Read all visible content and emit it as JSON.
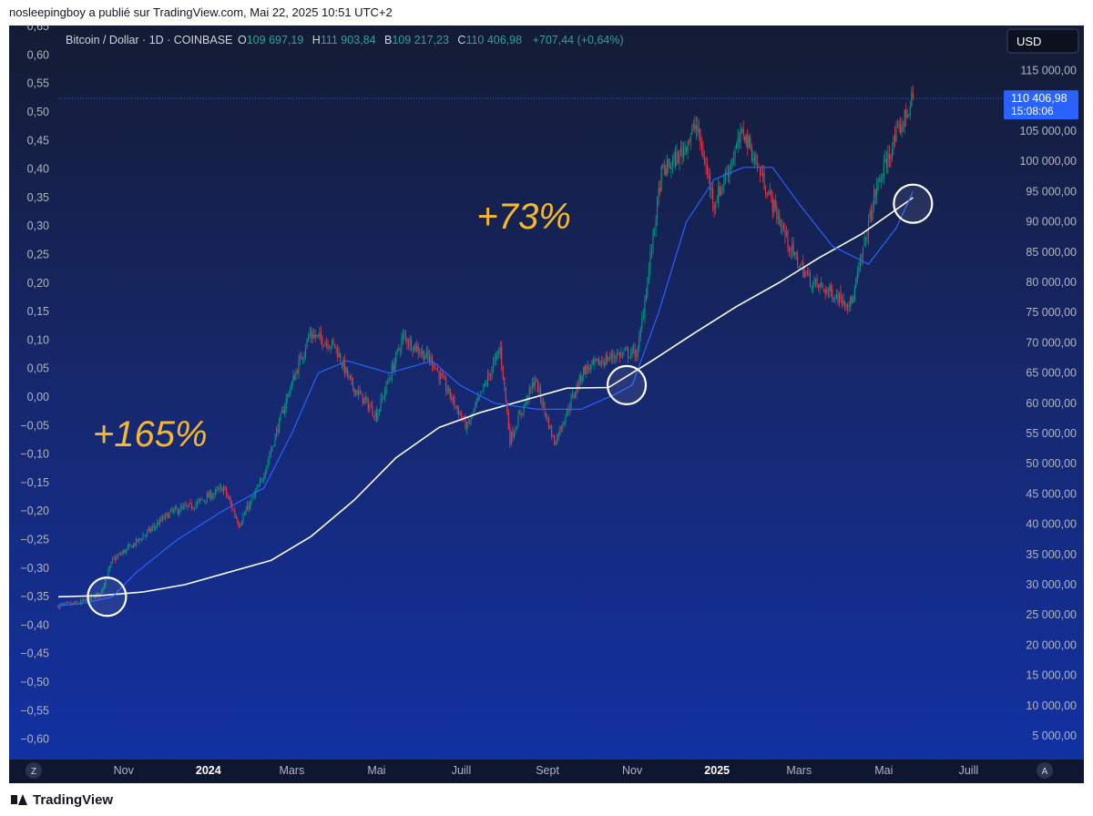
{
  "header": {
    "publisher_line": "nosleepingboy a publié sur TradingView.com, Mai 22, 2025 10:51 UTC+2"
  },
  "legend": {
    "symbol": "Bitcoin / Dollar · 1D · COINBASE",
    "o_label": "O",
    "o_value": "109 697,19",
    "h_label": "H",
    "h_value": "111 903,84",
    "b_label": "B",
    "b_value": "109 217,23",
    "c_label": "C",
    "c_value": "110 406,98",
    "change": "+707,44 (+0,64%)"
  },
  "currency_button": "USD",
  "price_tag": {
    "price": "110 406,98",
    "countdown": "15:08:06"
  },
  "annotations": [
    {
      "text": "+165%",
      "date": "2023-11-20",
      "price": 55000
    },
    {
      "text": "+73%",
      "date": "2024-08-15",
      "price": 91000
    }
  ],
  "axis_buttons": {
    "left": "Z",
    "right": "A"
  },
  "footer": {
    "brand": "TradingView"
  },
  "colors": {
    "background": "#131d3a",
    "up": "#089981",
    "down": "#f23645",
    "ma_short": "#2962ff",
    "ma_long": "#ffffff",
    "annotation": "#f5b82e",
    "price_tag": "#2962ff"
  },
  "chart_data": {
    "type": "line",
    "title": "Bitcoin / Dollar · 1D · COINBASE",
    "right_axis": {
      "ylim": [
        0,
        120000
      ],
      "ticks": [
        5000,
        10000,
        15000,
        20000,
        25000,
        30000,
        35000,
        40000,
        45000,
        50000,
        55000,
        60000,
        65000,
        70000,
        75000,
        80000,
        85000,
        90000,
        95000,
        100000,
        105000,
        110000,
        115000
      ],
      "tick_labels": [
        "5 000,00",
        "10 000,00",
        "15 000,00",
        "20 000,00",
        "25 000,00",
        "30 000,00",
        "35 000,00",
        "40 000,00",
        "45 000,00",
        "50 000,00",
        "55 000,00",
        "60 000,00",
        "65 000,00",
        "70 000,00",
        "75 000,00",
        "80 000,00",
        "85 000,00",
        "90 000,00",
        "95 000,00",
        "100 000,00",
        "105 000,00",
        "110 000,00",
        "115 000,00"
      ]
    },
    "left_axis": {
      "ticks": [
        0.65,
        0.6,
        0.55,
        0.5,
        0.45,
        0.4,
        0.35,
        0.3,
        0.25,
        0.2,
        0.15,
        0.1,
        0.05,
        0.0,
        -0.05,
        -0.1,
        -0.15,
        -0.2,
        -0.25,
        -0.3,
        -0.35,
        -0.4,
        -0.45,
        -0.5,
        -0.55,
        -0.6
      ],
      "tick_labels": [
        "0,65",
        "0,60",
        "0,55",
        "0,50",
        "0,45",
        "0,40",
        "0,35",
        "0,30",
        "0,25",
        "0,20",
        "0,15",
        "0,10",
        "0,05",
        "0,00",
        "−0,05",
        "−0,10",
        "−0,15",
        "−0,20",
        "−0,25",
        "−0,30",
        "−0,35",
        "−0,40",
        "−0,45",
        "−0,50",
        "−0,55",
        "−0,60"
      ]
    },
    "x_axis": {
      "xlim": [
        "2023-09-15",
        "2025-07-25"
      ],
      "tick_dates": [
        "2023-11-01",
        "2024-01-01",
        "2024-03-01",
        "2024-05-01",
        "2024-07-01",
        "2024-09-01",
        "2024-11-01",
        "2025-01-01",
        "2025-03-01",
        "2025-05-01",
        "2025-07-01"
      ],
      "tick_labels": [
        "Nov",
        "2024",
        "Mars",
        "Mai",
        "Juill",
        "Sept",
        "Nov",
        "2025",
        "Mars",
        "Mai",
        "Juill"
      ],
      "bold_labels": [
        "2024",
        "2025"
      ]
    },
    "series": [
      {
        "type": "candlestick",
        "x": [
          "2023-09-15",
          "2023-10-01",
          "2023-10-15",
          "2023-10-24",
          "2023-11-10",
          "2023-12-05",
          "2023-12-20",
          "2024-01-12",
          "2024-01-23",
          "2024-02-08",
          "2024-02-28",
          "2024-03-14",
          "2024-04-01",
          "2024-04-13",
          "2024-05-01",
          "2024-05-20",
          "2024-06-10",
          "2024-07-05",
          "2024-07-29",
          "2024-08-05",
          "2024-08-23",
          "2024-09-06",
          "2024-09-27",
          "2024-10-20",
          "2024-11-05",
          "2024-11-22",
          "2024-12-05",
          "2024-12-17",
          "2024-12-30",
          "2025-01-20",
          "2025-02-03",
          "2025-02-25",
          "2025-03-10",
          "2025-04-08",
          "2025-04-25",
          "2025-05-08",
          "2025-05-22"
        ],
        "values": [
          26500,
          27000,
          28500,
          34000,
          37000,
          42000,
          43000,
          46000,
          40000,
          47000,
          62000,
          71500,
          69500,
          63000,
          58000,
          71000,
          67000,
          56000,
          69000,
          54000,
          64000,
          53500,
          65500,
          68000,
          68500,
          98000,
          101000,
          106000,
          93000,
          105000,
          97000,
          84500,
          80000,
          76500,
          95000,
          103000,
          110400
        ]
      },
      {
        "name": "",
        "type": "moving-average-short",
        "x": [
          "2023-09-15",
          "2023-10-01",
          "2023-10-24",
          "2023-11-10",
          "2023-12-10",
          "2024-01-10",
          "2024-02-10",
          "2024-03-01",
          "2024-03-20",
          "2024-04-10",
          "2024-05-10",
          "2024-06-10",
          "2024-06-30",
          "2024-07-25",
          "2024-08-25",
          "2024-09-25",
          "2024-10-20",
          "2024-11-01",
          "2024-11-20",
          "2024-12-10",
          "2024-12-30",
          "2025-01-20",
          "2025-02-10",
          "2025-03-01",
          "2025-03-25",
          "2025-04-20",
          "2025-05-10",
          "2025-05-22"
        ],
        "values": [
          26500,
          26800,
          28000,
          32000,
          37500,
          42000,
          46000,
          55000,
          65000,
          67000,
          65000,
          67000,
          63000,
          60000,
          59000,
          59000,
          61500,
          63000,
          75000,
          90000,
          97000,
          99000,
          99000,
          93000,
          86000,
          83000,
          89000,
          95000
        ]
      },
      {
        "name": "",
        "type": "moving-average-long",
        "x": [
          "2023-09-15",
          "2023-10-15",
          "2023-11-15",
          "2023-12-15",
          "2024-01-15",
          "2024-02-15",
          "2024-03-15",
          "2024-04-15",
          "2024-05-15",
          "2024-06-15",
          "2024-07-15",
          "2024-08-15",
          "2024-09-15",
          "2024-10-15",
          "2024-11-15",
          "2024-12-15",
          "2025-01-15",
          "2025-02-15",
          "2025-03-15",
          "2025-04-15",
          "2025-05-22"
        ],
        "values": [
          28000,
          28200,
          28800,
          30000,
          32000,
          34000,
          38000,
          44000,
          51000,
          56000,
          58500,
          60500,
          62500,
          62600,
          67000,
          71500,
          76000,
          80000,
          84000,
          88000,
          94000
        ]
      }
    ],
    "circle_markers": [
      {
        "date": "2023-10-20",
        "price": 28000
      },
      {
        "date": "2024-10-28",
        "price": 63000
      },
      {
        "date": "2025-05-22",
        "price": 93000
      }
    ],
    "last_price_line": 110406.98
  }
}
